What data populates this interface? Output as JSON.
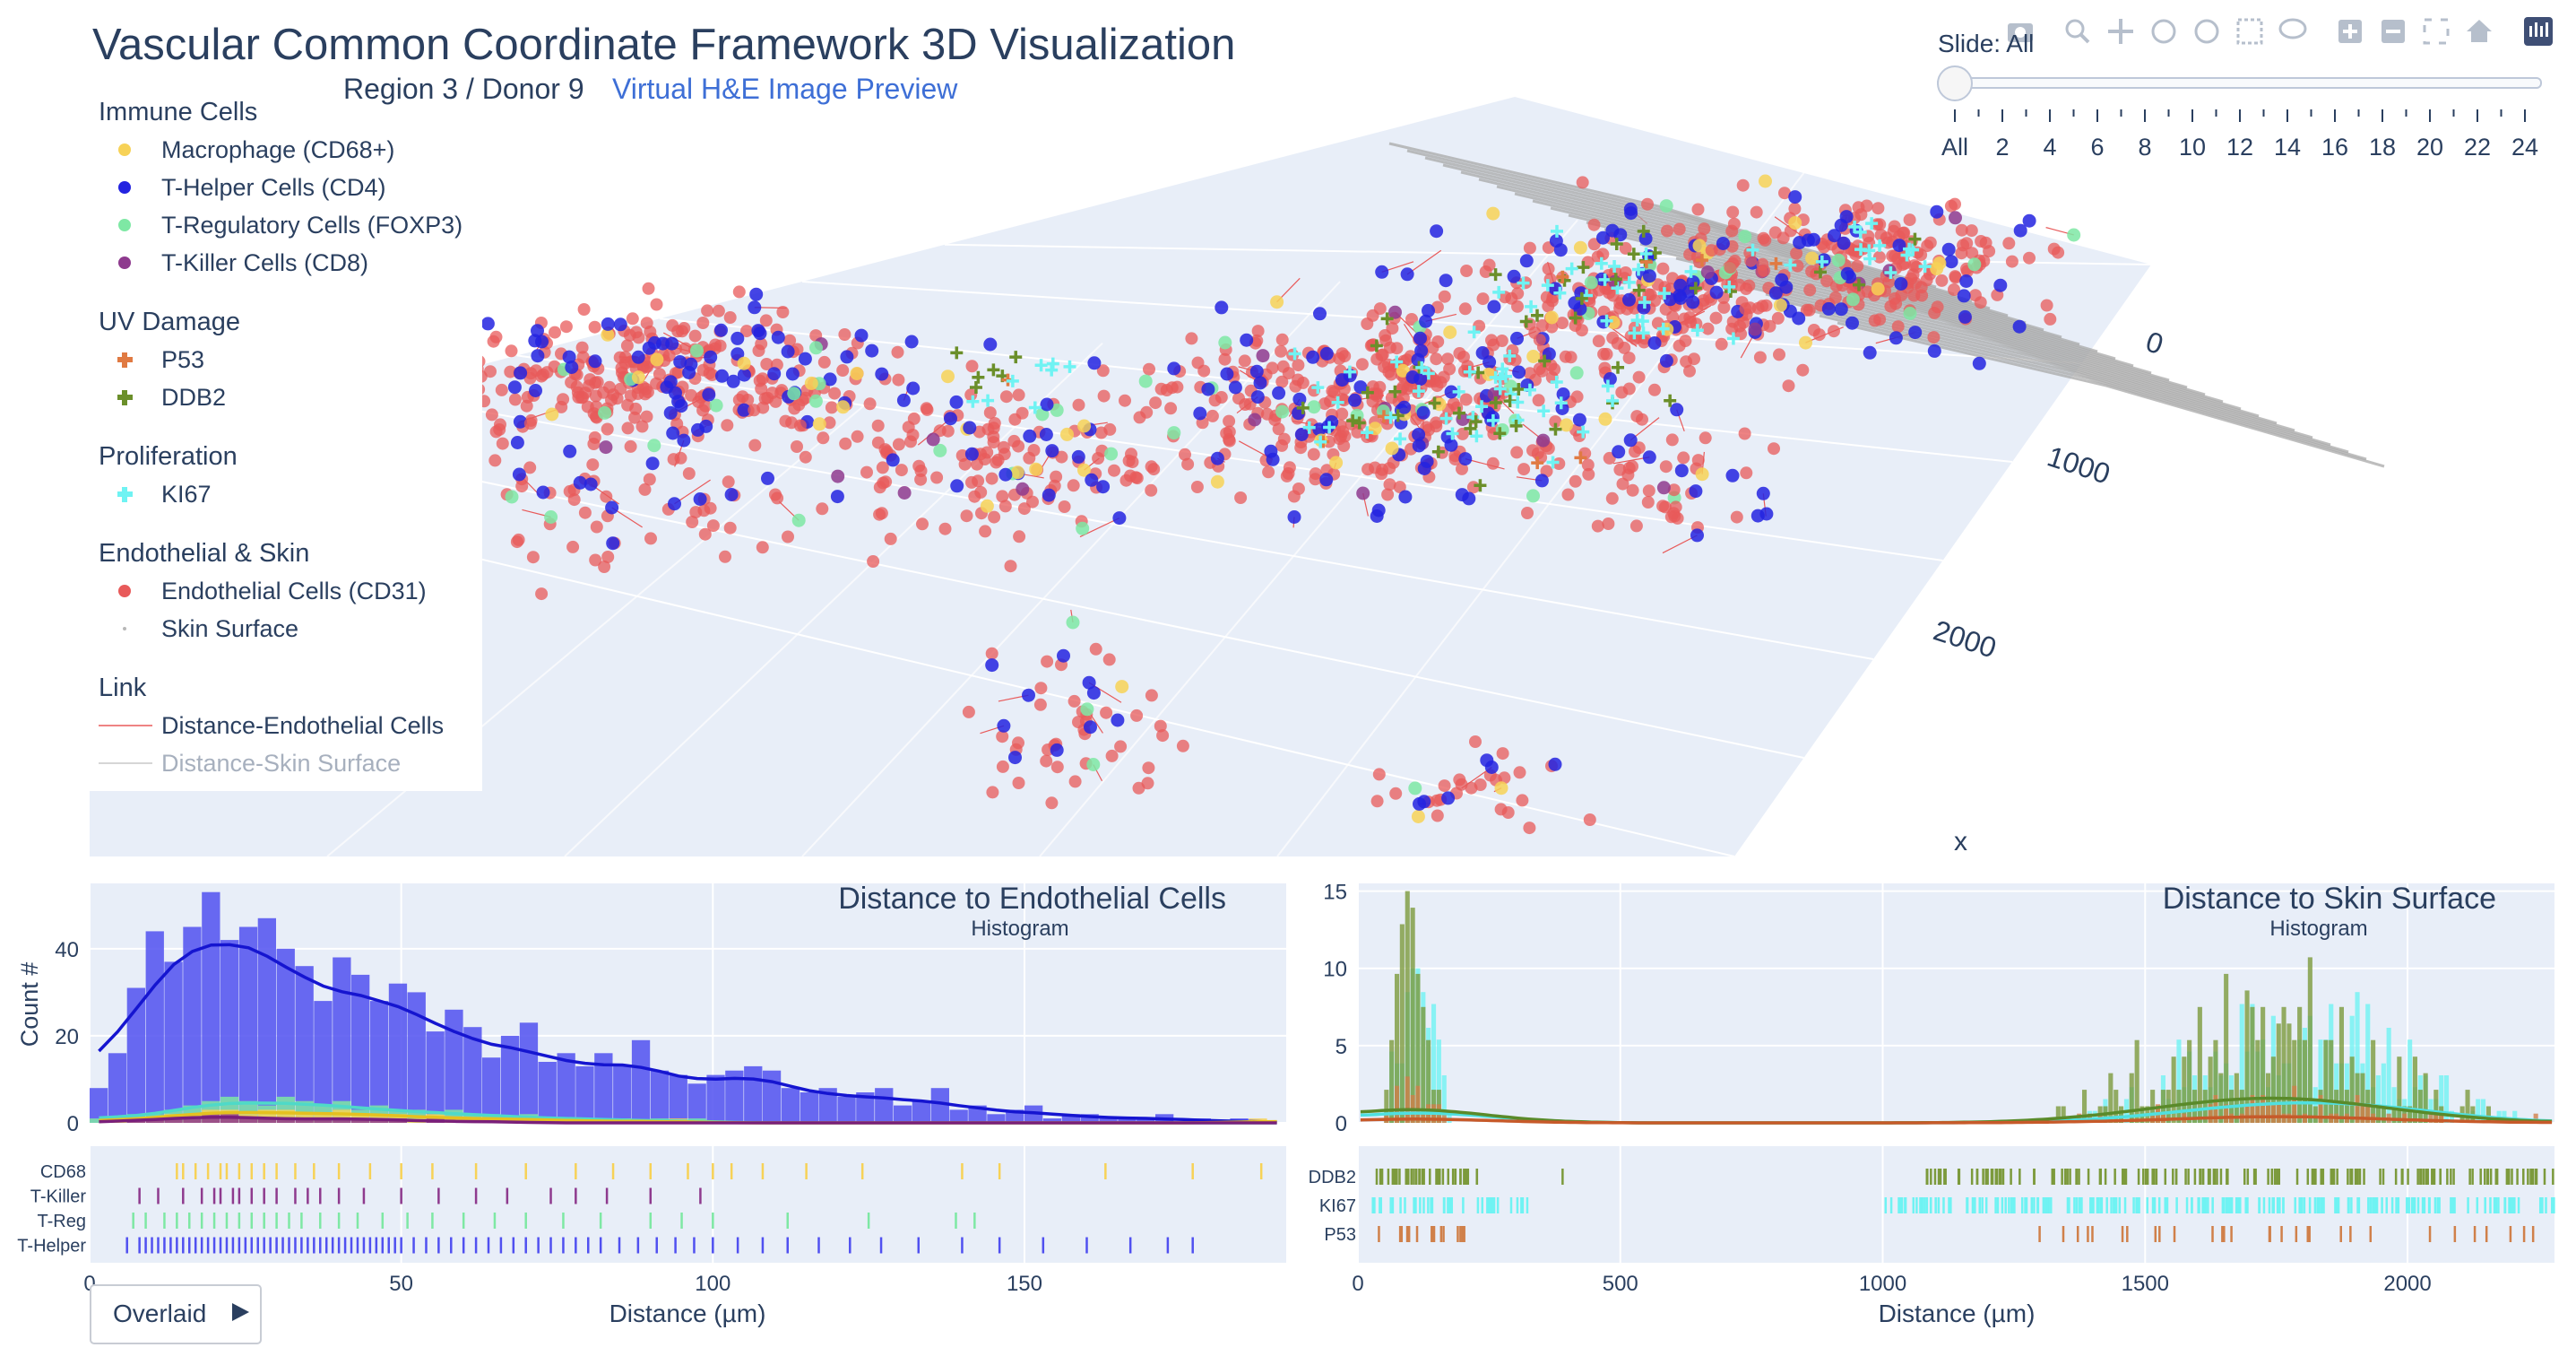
{
  "header": {
    "title": "Vascular Common Coordinate Framework 3D Visualization",
    "subtitle": "Region 3 / Donor 9",
    "link": "Virtual H&E Image Preview"
  },
  "legend": {
    "groups": [
      {
        "title": "Immune Cells",
        "items": [
          {
            "label": "Macrophage (CD68+)",
            "color": "#f7d257",
            "symbol": "circle"
          },
          {
            "label": "T-Helper Cells (CD4)",
            "color": "#2323e0",
            "symbol": "circle"
          },
          {
            "label": "T-Regulatory Cells (FOXP3)",
            "color": "#7ee8a4",
            "symbol": "circle"
          },
          {
            "label": "T-Killer Cells (CD8)",
            "color": "#8e3a8e",
            "symbol": "circle"
          }
        ]
      },
      {
        "title": "UV Damage",
        "items": [
          {
            "label": "P53",
            "color": "#e07a42",
            "symbol": "cross"
          },
          {
            "label": "DDB2",
            "color": "#6b8f2a",
            "symbol": "cross"
          }
        ]
      },
      {
        "title": "Proliferation",
        "items": [
          {
            "label": "KI67",
            "color": "#6ff3f3",
            "symbol": "cross"
          }
        ]
      },
      {
        "title": "Endothelial & Skin",
        "items": [
          {
            "label": "Endothelial Cells (CD31)",
            "color": "#e85a5a",
            "symbol": "circle"
          },
          {
            "label": "Skin Surface",
            "color": "#b8b8b8",
            "symbol": "dot"
          }
        ]
      },
      {
        "title": "Link",
        "items": [
          {
            "label": "Distance-Endothelial Cells",
            "color": "#e85a5a",
            "symbol": "line"
          },
          {
            "label": "Distance-Skin Surface",
            "color": "#c9c9c9",
            "symbol": "line",
            "dimmed": true
          }
        ]
      }
    ]
  },
  "slider": {
    "label": "Slide: All",
    "ticks": [
      "All",
      "2",
      "4",
      "6",
      "8",
      "10",
      "12",
      "14",
      "16",
      "18",
      "20",
      "22",
      "24"
    ],
    "selected": "All"
  },
  "scene": {
    "axis_ticks": [
      "0",
      "1000",
      "2000"
    ],
    "axis_label": "x"
  },
  "overlay_button": {
    "label": "Overlaid",
    "icon": "play-triangle-icon"
  },
  "chart_data": [
    {
      "type": "histogram",
      "title": "Distance to Endothelial Cells",
      "subtitle": "Histogram",
      "xlabel": "Distance (µm)",
      "ylabel": "Count #",
      "xlim": [
        0,
        192
      ],
      "ylim": [
        0,
        55
      ],
      "xticks": [
        "0",
        "50",
        "100",
        "150"
      ],
      "yticks": [
        "0",
        "20",
        "40"
      ],
      "bin_width": 3,
      "series": [
        {
          "name": "T-Helper",
          "color": "#5050f0",
          "line_color": "#1515d0",
          "values": [
            8,
            16,
            31,
            44,
            37,
            45,
            53,
            42,
            45,
            47,
            40,
            36,
            28,
            38,
            34,
            28,
            32,
            30,
            21,
            26,
            22,
            15,
            20,
            23,
            14,
            16,
            13,
            16,
            13,
            19,
            12,
            11,
            9,
            11,
            12,
            13,
            12,
            8,
            7,
            8,
            6,
            7,
            8,
            4,
            5,
            8,
            3,
            4,
            2,
            3,
            4,
            1,
            2,
            2,
            1,
            1,
            1,
            2,
            0,
            1,
            0,
            1,
            0,
            0
          ]
        },
        {
          "name": "T-Reg",
          "color": "#7ee8a4",
          "line_color": "#4fd9c8",
          "values": [
            1,
            1,
            2,
            2,
            3,
            4,
            5,
            6,
            5,
            4,
            6,
            5,
            4,
            5,
            3,
            4,
            3,
            3,
            2,
            3,
            2,
            2,
            1,
            2,
            1,
            1,
            1,
            1,
            1,
            0,
            1,
            0,
            1,
            0,
            0,
            0,
            0,
            0,
            0,
            0,
            0,
            0,
            0,
            0,
            0,
            0,
            0,
            0,
            0,
            0,
            0,
            0,
            0,
            0,
            0,
            0,
            0,
            0,
            0,
            0,
            0,
            0,
            0,
            0
          ]
        },
        {
          "name": "CD68",
          "color": "#f7d257",
          "line_color": "#e5c020",
          "values": [
            0,
            1,
            1,
            1,
            2,
            2,
            3,
            3,
            2,
            3,
            3,
            2,
            2,
            3,
            2,
            2,
            2,
            1,
            2,
            1,
            1,
            1,
            1,
            1,
            1,
            0,
            1,
            0,
            1,
            0,
            0,
            1,
            0,
            0,
            0,
            0,
            0,
            0,
            0,
            0,
            0,
            0,
            0,
            0,
            0,
            0,
            0,
            0,
            0,
            0,
            0,
            0,
            0,
            0,
            0,
            0,
            0,
            0,
            0,
            0,
            0,
            0,
            1,
            0
          ]
        },
        {
          "name": "T-Killer",
          "color": "#8e3a8e",
          "line_color": "#7a1f7a",
          "values": [
            0,
            0,
            1,
            1,
            1,
            1,
            2,
            2,
            1,
            1,
            1,
            1,
            1,
            1,
            1,
            1,
            1,
            0,
            1,
            0,
            0,
            1,
            0,
            0,
            0,
            0,
            0,
            0,
            0,
            0,
            0,
            0,
            0,
            0,
            0,
            0,
            0,
            0,
            0,
            0,
            0,
            0,
            0,
            0,
            0,
            0,
            0,
            0,
            0,
            0,
            0,
            0,
            0,
            0,
            0,
            0,
            0,
            0,
            0,
            0,
            0,
            0,
            0,
            0
          ]
        }
      ],
      "rug": {
        "rows": [
          {
            "name": "CD68",
            "color": "#f7d257",
            "values": [
              14,
              15,
              17,
              19,
              21,
              22,
              24,
              26,
              28,
              30,
              33,
              36,
              40,
              45,
              50,
              55,
              62,
              70,
              78,
              84,
              90,
              96,
              100,
              103,
              108,
              115,
              124,
              140,
              146,
              163,
              177,
              188
            ]
          },
          {
            "name": "T-Killer",
            "color": "#8e3a8e",
            "values": [
              8,
              11,
              15,
              18,
              20,
              21,
              23,
              24,
              26,
              28,
              30,
              33,
              35,
              37,
              40,
              44,
              50,
              56,
              62,
              67,
              74,
              78,
              83,
              90,
              98
            ]
          },
          {
            "name": "T-Reg",
            "color": "#7ee8a4",
            "values": [
              7,
              9,
              12,
              14,
              16,
              18,
              20,
              22,
              24,
              26,
              28,
              30,
              32,
              34,
              37,
              40,
              43,
              47,
              51,
              55,
              60,
              65,
              70,
              76,
              82,
              90,
              95,
              100,
              112,
              125,
              139,
              142
            ]
          },
          {
            "name": "T-Helper",
            "color": "#5050f0",
            "values": [
              6,
              8,
              9,
              10,
              11,
              12,
              13,
              14,
              15,
              16,
              17,
              18,
              19,
              20,
              21,
              22,
              23,
              24,
              25,
              26,
              27,
              28,
              29,
              30,
              31,
              32,
              33,
              34,
              35,
              36,
              37,
              38,
              39,
              40,
              41,
              42,
              43,
              44,
              45,
              46,
              47,
              48,
              49,
              50,
              52,
              54,
              56,
              58,
              60,
              62,
              64,
              66,
              68,
              70,
              72,
              74,
              76,
              78,
              80,
              82,
              85,
              88,
              91,
              94,
              97,
              100,
              104,
              108,
              112,
              117,
              122,
              127,
              133,
              140,
              146,
              153,
              160,
              167,
              173,
              177
            ]
          }
        ]
      }
    },
    {
      "type": "histogram",
      "title": "Distance to Skin Surface",
      "subtitle": "Histogram",
      "xlabel": "Distance (µm)",
      "ylabel": "",
      "xlim": [
        0,
        2280
      ],
      "ylim": [
        0,
        15.5
      ],
      "xticks": [
        "0",
        "500",
        "1000",
        "1500",
        "2000"
      ],
      "yticks": [
        "0",
        "5",
        "10",
        "15"
      ],
      "series": [
        {
          "name": "KI67",
          "color": "#6ff3f3",
          "line_color": "#4fe0e0",
          "clusters": [
            {
              "center": 110,
              "spread": 50,
              "count": 95
            },
            {
              "center": 1800,
              "spread": 330,
              "count": 300
            }
          ],
          "max": 10
        },
        {
          "name": "DDB2",
          "color": "#7c9a3c",
          "line_color": "#5a8a2a",
          "clusters": [
            {
              "center": 100,
              "spread": 40,
              "count": 80
            },
            {
              "center": 1750,
              "spread": 340,
              "count": 230
            }
          ],
          "max": 15
        },
        {
          "name": "P53",
          "color": "#d0804a",
          "line_color": "#c75a2a",
          "clusters": [
            {
              "center": 110,
              "spread": 60,
              "count": 25
            },
            {
              "center": 1800,
              "spread": 350,
              "count": 60
            }
          ],
          "max": 3
        }
      ],
      "rug": {
        "rows": [
          {
            "name": "DDB2",
            "color": "#7c9a3c",
            "range": [
              [
                30,
                250,
                40
              ],
              [
                390,
                390,
                1
              ],
              [
                1080,
                2280,
                150
              ]
            ]
          },
          {
            "name": "KI67",
            "color": "#6ff3f3",
            "range": [
              [
                20,
                340,
                40
              ],
              [
                1000,
                2280,
                200
              ]
            ]
          },
          {
            "name": "P53",
            "color": "#d0804a",
            "range": [
              [
                40,
                220,
                18
              ],
              [
                1250,
                2280,
                30
              ]
            ]
          }
        ]
      }
    }
  ]
}
